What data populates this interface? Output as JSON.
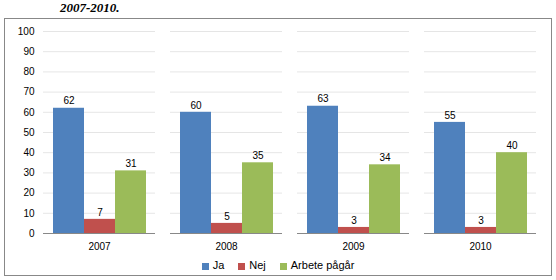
{
  "chart_data": {
    "type": "bar",
    "title": "2007-2010.",
    "categories": [
      "2007",
      "2008",
      "2009",
      "2010"
    ],
    "series": [
      {
        "name": "Ja",
        "color": "#4f81bd",
        "values": [
          62,
          60,
          63,
          55
        ]
      },
      {
        "name": "Nej",
        "color": "#c0504d",
        "values": [
          7,
          5,
          3,
          3
        ]
      },
      {
        "name": "Arbete pågår",
        "color": "#9bbb59",
        "values": [
          31,
          35,
          34,
          40
        ]
      }
    ],
    "ylim": [
      0,
      100
    ],
    "yticks": [
      0,
      10,
      20,
      30,
      40,
      50,
      60,
      70,
      80,
      90,
      100
    ],
    "grid": true,
    "data_labels": true,
    "legend": "bottom"
  }
}
